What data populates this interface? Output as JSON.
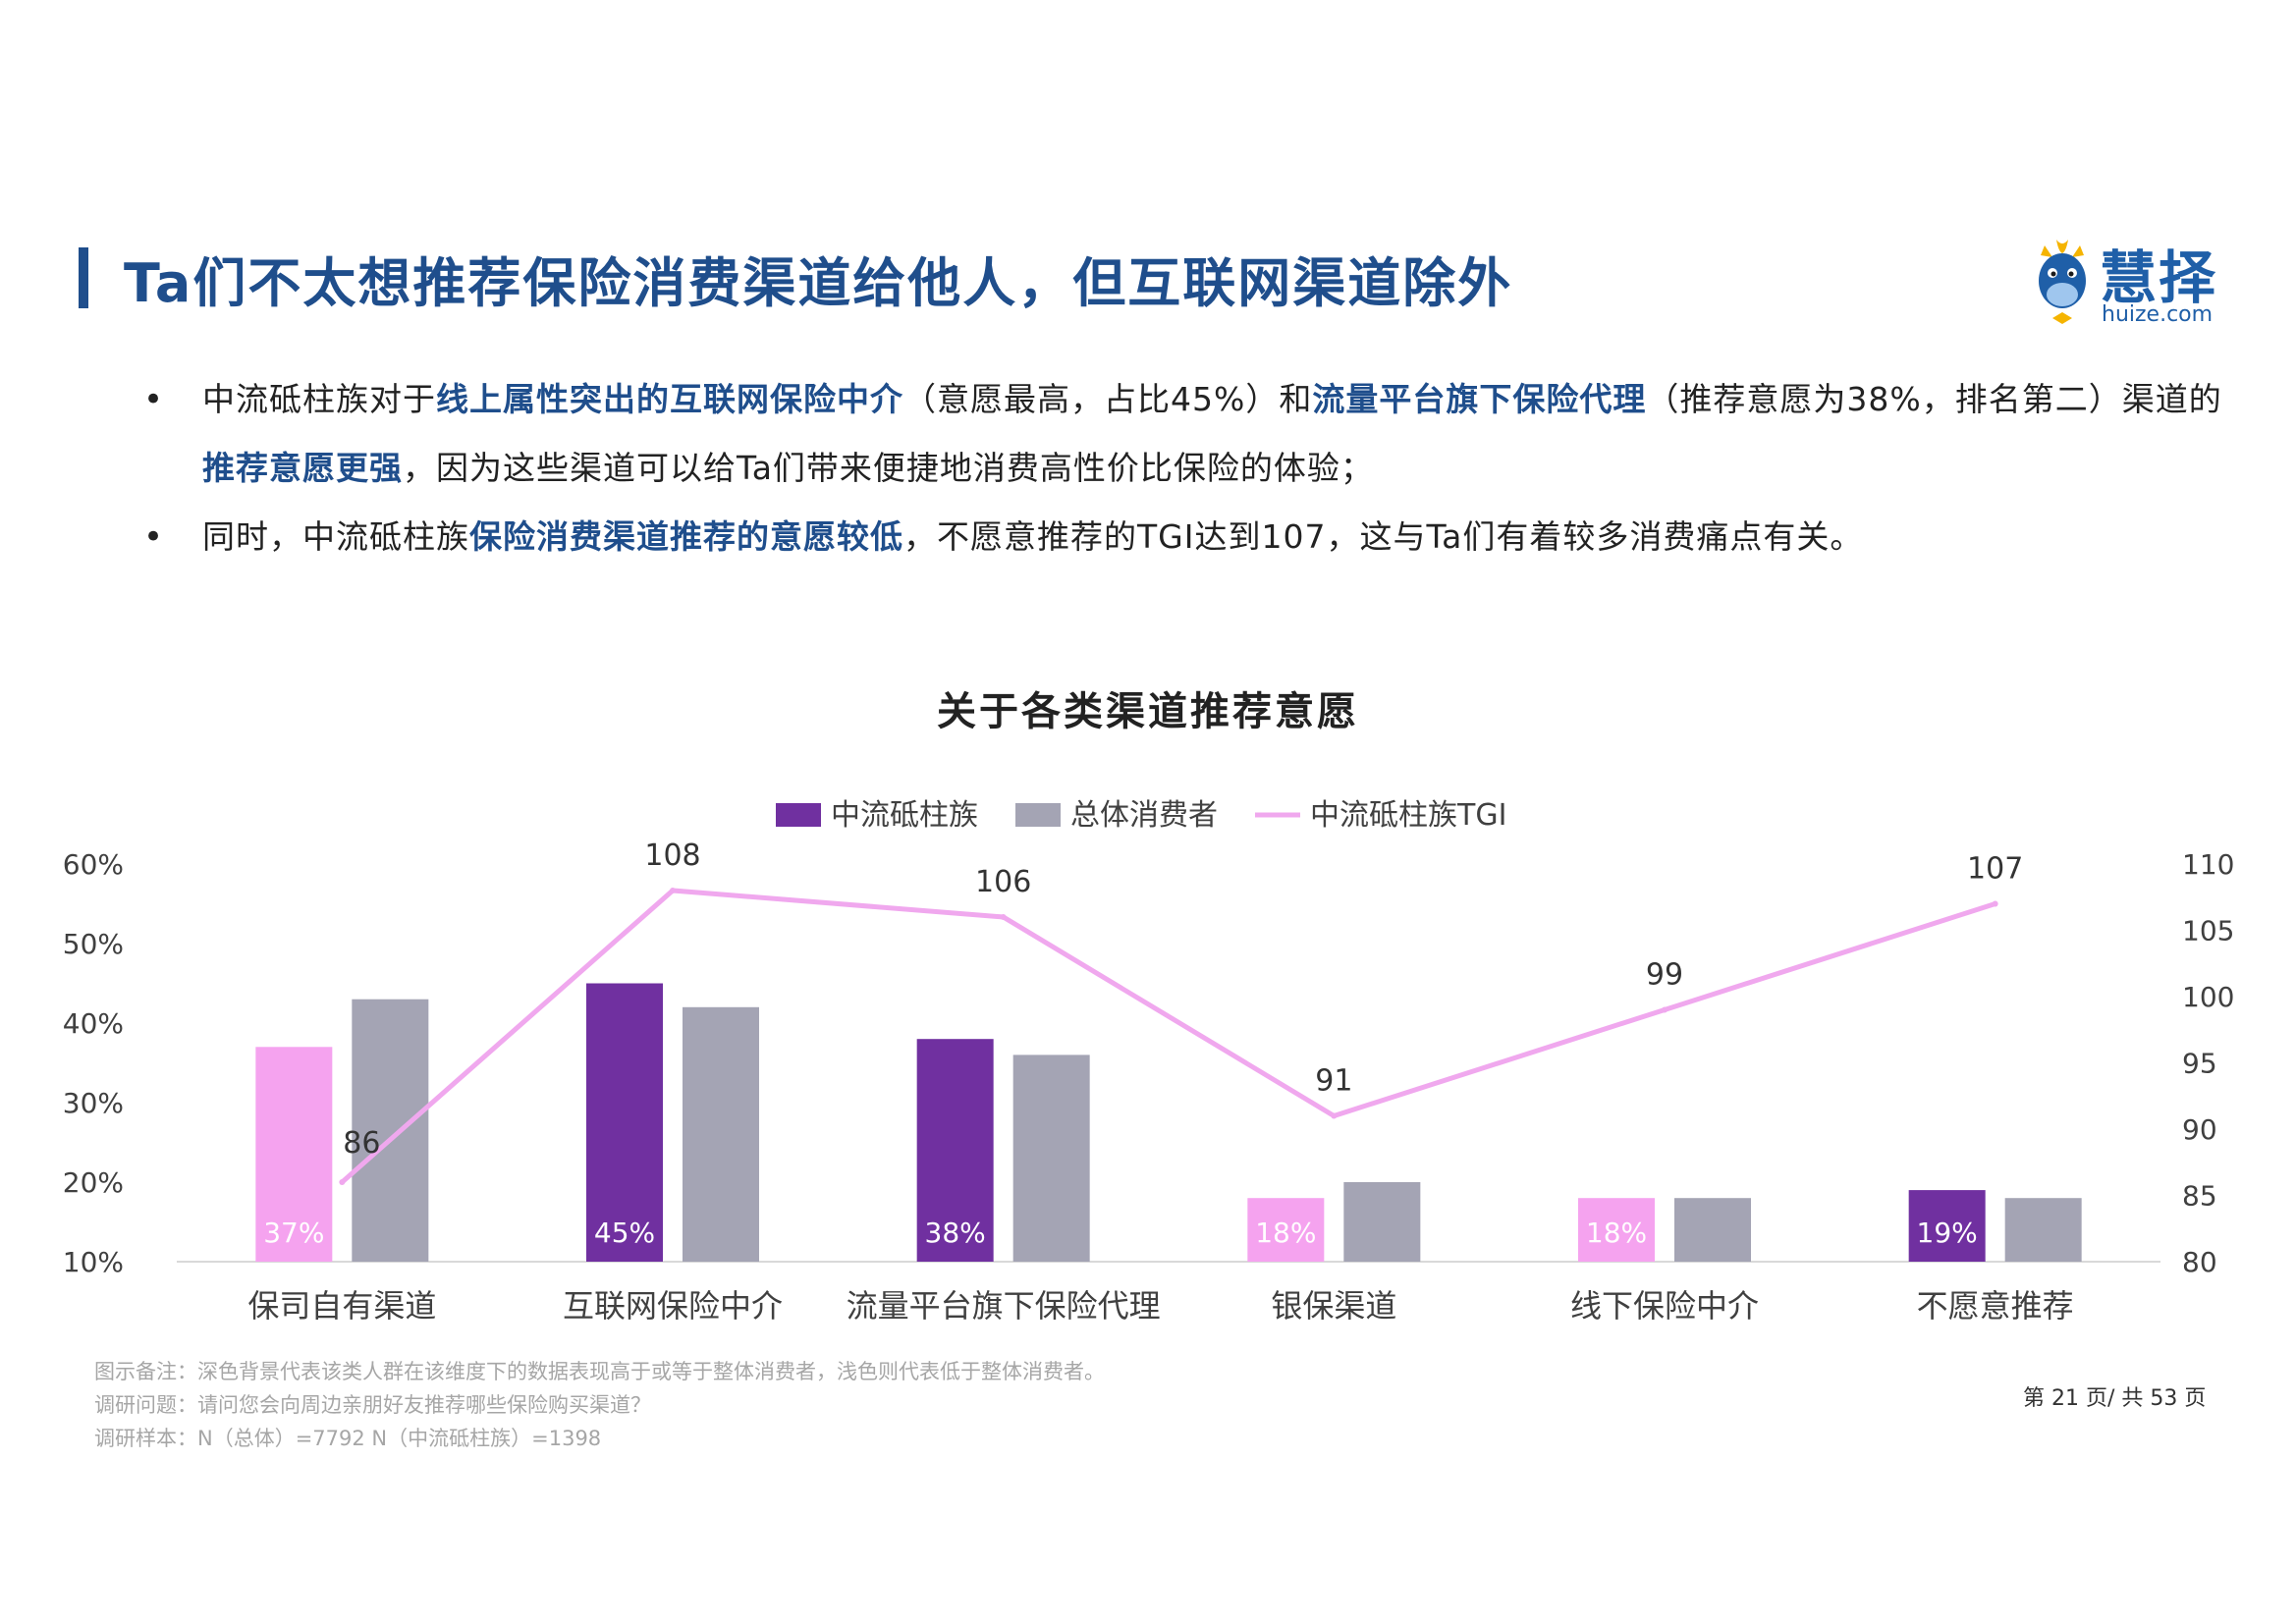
{
  "page": {
    "title": "Ta们不太想推荐保险消费渠道给他人，但互联网渠道除外",
    "logo_text": "慧择",
    "logo_sub": "huize.com",
    "bullet1": {
      "p1": "中流砥柱族对于",
      "h1": "线上属性突出的互联网保险中介",
      "p2": "（意愿最高，占比45%）和",
      "h2": "流量平台旗下保险代理",
      "p3": "（推荐意愿为38%，排名第二）渠道的",
      "h3": "推荐意愿更强",
      "p4": "，因为这些渠道可以给Ta们带来便捷地消费高性价比保险的体验；"
    },
    "bullet2": {
      "p1": "同时，中流砥柱族",
      "h1": "保险消费渠道推荐的意愿较低",
      "p2": "，不愿意推荐的TGI达到107，这与Ta们有着较多消费痛点有关。"
    },
    "footnote1": "图示备注：深色背景代表该类人群在该维度下的数据表现高于或等于整体消费者，浅色则代表低于整体消费者。",
    "footnote2": "调研问题：请问您会向周边亲朋好友推荐哪些保险购买渠道？",
    "footnote3": "调研样本：N（总体）=7792      N（中流砥柱族）=1398",
    "page_number": "第 21 页/ 共 53 页"
  },
  "chart_data": {
    "type": "bar",
    "title": "关于各类渠道推荐意愿",
    "legend_placement": "top-center",
    "categories": [
      "保司自有渠道",
      "互联网保险中介",
      "流量平台旗下保险代理",
      "银保渠道",
      "线下保险中介",
      "不愿意推荐"
    ],
    "series": [
      {
        "name": "中流砥柱族",
        "kind": "bar",
        "axis": "left",
        "values": [
          37,
          45,
          38,
          18,
          18,
          19
        ],
        "labels": [
          "37%",
          "45%",
          "38%",
          "18%",
          "18%",
          "19%"
        ],
        "highlight": [
          false,
          true,
          true,
          false,
          false,
          true
        ]
      },
      {
        "name": "总体消费者",
        "kind": "bar",
        "axis": "left",
        "values": [
          43,
          42,
          36,
          20,
          18,
          18
        ]
      },
      {
        "name": "中流砥柱族TGI",
        "kind": "line",
        "axis": "right",
        "values": [
          86,
          108,
          106,
          91,
          99,
          107
        ],
        "labels": [
          "86",
          "108",
          "106",
          "91",
          "99",
          "107"
        ]
      }
    ],
    "y_left": {
      "min": 10,
      "max": 60,
      "ticks": [
        "10%",
        "20%",
        "30%",
        "40%",
        "50%",
        "60%"
      ]
    },
    "y_right": {
      "min": 80,
      "max": 110,
      "ticks": [
        "80",
        "85",
        "90",
        "95",
        "100",
        "105",
        "110"
      ]
    },
    "grid": false,
    "colors": {
      "highlight_bar": "#7030a0",
      "light_bar": "#f5a3ef",
      "overall_bar": "#a4a4b4",
      "tgi_line": "#f0a8ee"
    }
  }
}
